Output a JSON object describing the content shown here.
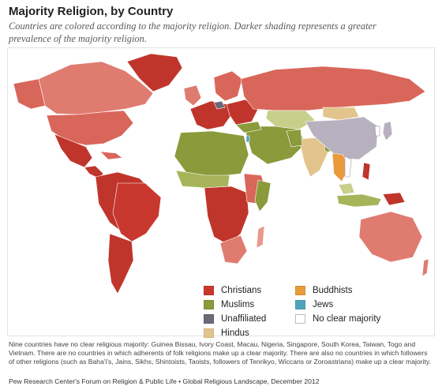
{
  "title": "Majority Religion, by Country",
  "subtitle": "Countries are colored according to the majority religion. Darker shading represents a greater prevalence of the majority religion.",
  "legend": [
    {
      "label": "Christians",
      "color": "#c9382e",
      "key": "christians"
    },
    {
      "label": "Muslims",
      "color": "#8b9a3a",
      "key": "muslims"
    },
    {
      "label": "Unaffiliated",
      "color": "#6d6777",
      "key": "unaffiliated"
    },
    {
      "label": "Hindus",
      "color": "#e3c48d",
      "key": "hindus"
    },
    {
      "label": "Buddhists",
      "color": "#e99a3b",
      "key": "buddhists"
    },
    {
      "label": "Jews",
      "color": "#4fa4bd",
      "key": "jews"
    },
    {
      "label": "No clear majority",
      "color": "#ffffff",
      "key": "none"
    }
  ],
  "palette": {
    "christians_light": "#e8998c",
    "christians_mid": "#d9665a",
    "christians_dark": "#c0352b",
    "muslims_light": "#c7cf8a",
    "muslims_dark": "#8b9a3a",
    "unaffiliated": "#b7b1bf",
    "hindus": "#e3c48d",
    "buddhists": "#e99a3b",
    "jews": "#4fa4bd",
    "ocean": "#ffffff",
    "border": "#ffffff"
  },
  "note": "Nine countries have no clear religious majority: Guinea Bissau, Ivory Coast, Macau, Nigeria, Singapore, South Korea, Taiwan, Togo and Vietnam. There are no countries in which adherents of folk religions make up a clear majority. There are also no countries in which followers of other religions (such as Baha'i's, Jains, Sikhs, Shintoists, Taoists, followers of Tenrikyo, Wiccans or Zoroastrians) make up a clear majority.",
  "source": "Pew Research Center's Forum on Religion & Public Life • Global Religious Landscape, December 2012"
}
